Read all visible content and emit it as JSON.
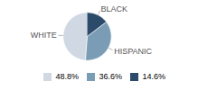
{
  "chart_data": {
    "type": "pie",
    "categories": [
      "WHITE",
      "HISPANIC",
      "BLACK"
    ],
    "values": [
      48.8,
      36.6,
      14.6
    ],
    "value_labels": [
      "48.8%",
      "36.6%",
      "14.6%"
    ],
    "colors": [
      "#d0d9e3",
      "#7a9db5",
      "#2c4a6a"
    ],
    "legend": "bottom"
  }
}
